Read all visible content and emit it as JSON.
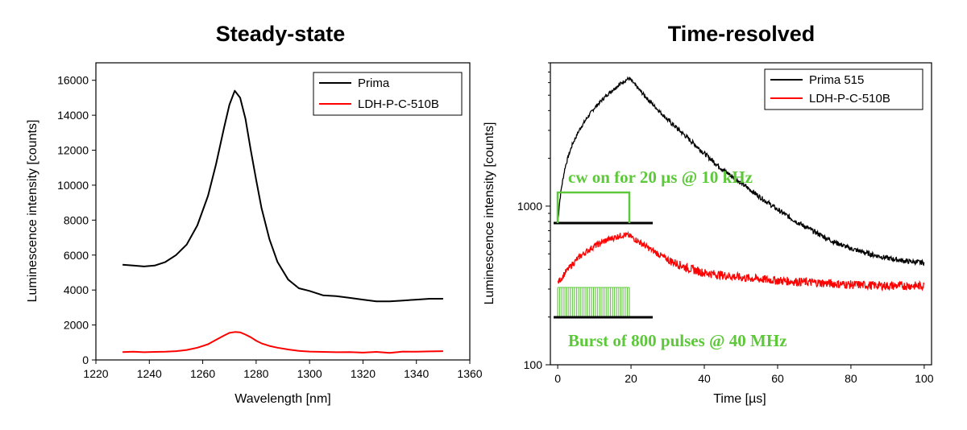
{
  "chart_data": [
    {
      "type": "line",
      "title": "Steady-state",
      "xlabel": "Wavelength [nm]",
      "ylabel": "Luminescence intensity [counts]",
      "xlim": [
        1220,
        1360
      ],
      "ylim": [
        0,
        17000
      ],
      "xticks": [
        1220,
        1240,
        1260,
        1280,
        1300,
        1320,
        1340,
        1360
      ],
      "yticks": [
        0,
        2000,
        4000,
        6000,
        8000,
        10000,
        12000,
        14000,
        16000
      ],
      "legend_position": "top-right",
      "series": [
        {
          "name": "Prima",
          "color": "#000000",
          "x": [
            1230,
            1234,
            1238,
            1242,
            1246,
            1250,
            1254,
            1258,
            1262,
            1265,
            1268,
            1270,
            1272,
            1274,
            1276,
            1278,
            1280,
            1282,
            1285,
            1288,
            1292,
            1296,
            1300,
            1305,
            1310,
            1315,
            1320,
            1325,
            1330,
            1335,
            1340,
            1345,
            1350
          ],
          "values": [
            5450,
            5400,
            5350,
            5400,
            5600,
            6000,
            6600,
            7700,
            9400,
            11200,
            13300,
            14600,
            15400,
            15000,
            13800,
            12000,
            10300,
            8700,
            6900,
            5600,
            4600,
            4100,
            3950,
            3700,
            3650,
            3550,
            3450,
            3350,
            3350,
            3400,
            3450,
            3500,
            3500
          ]
        },
        {
          "name": "LDH-P-C-510B",
          "color": "#ff0000",
          "x": [
            1230,
            1234,
            1238,
            1242,
            1246,
            1250,
            1254,
            1258,
            1262,
            1265,
            1268,
            1270,
            1272,
            1274,
            1276,
            1278,
            1280,
            1282,
            1285,
            1288,
            1292,
            1296,
            1300,
            1305,
            1310,
            1315,
            1320,
            1325,
            1330,
            1335,
            1340,
            1345,
            1350
          ],
          "values": [
            450,
            470,
            440,
            460,
            470,
            500,
            570,
            700,
            900,
            1150,
            1400,
            1550,
            1600,
            1580,
            1450,
            1300,
            1100,
            950,
            800,
            700,
            600,
            520,
            480,
            460,
            440,
            450,
            420,
            460,
            400,
            480,
            470,
            490,
            500
          ]
        }
      ]
    },
    {
      "type": "line",
      "title": "Time-resolved",
      "xlabel": "Time [µs]",
      "ylabel": "Luminescence intensity [counts]",
      "xlim": [
        -2,
        102
      ],
      "ylim": [
        100,
        8000
      ],
      "yscale": "log",
      "xticks": [
        0,
        20,
        40,
        60,
        80,
        100
      ],
      "yticks": [
        100,
        1000
      ],
      "legend_position": "top-right",
      "series": [
        {
          "name": "Prima 515",
          "color": "#000000",
          "x": [
            0,
            0.5,
            1,
            2,
            3,
            4,
            6,
            8,
            10,
            12,
            14,
            16,
            18,
            19.5,
            22,
            25,
            30,
            35,
            40,
            45,
            50,
            55,
            60,
            65,
            70,
            75,
            80,
            85,
            90,
            95,
            100
          ],
          "values": [
            780,
            1050,
            1300,
            1750,
            2100,
            2450,
            3050,
            3600,
            4150,
            4650,
            5150,
            5650,
            6100,
            6400,
            5500,
            4600,
            3500,
            2750,
            2150,
            1700,
            1400,
            1150,
            950,
            800,
            690,
            600,
            540,
            500,
            470,
            450,
            440
          ]
        },
        {
          "name": "LDH-P-C-510B",
          "color": "#ff0000",
          "x": [
            0,
            1,
            2,
            4,
            6,
            8,
            10,
            12,
            14,
            16,
            18,
            19.5,
            22,
            25,
            30,
            35,
            40,
            50,
            60,
            70,
            80,
            90,
            100
          ],
          "values": [
            330,
            350,
            380,
            430,
            480,
            520,
            560,
            590,
            620,
            640,
            660,
            650,
            600,
            540,
            460,
            410,
            380,
            355,
            340,
            330,
            320,
            315,
            315
          ]
        }
      ],
      "annotations": [
        "cw on for 20 µs @ 10 kHz",
        "Burst of 800 pulses @ 40 MHz"
      ]
    }
  ]
}
